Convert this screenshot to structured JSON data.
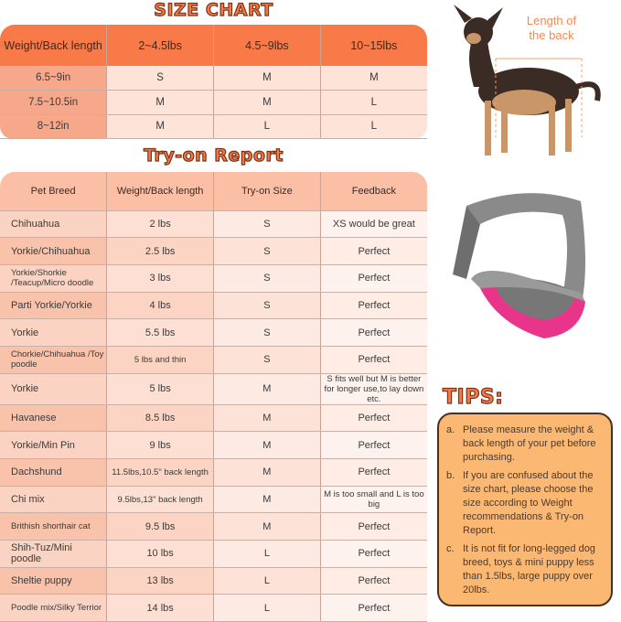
{
  "size_chart": {
    "title": "SIZE CHART",
    "headers": [
      "Weight/Back length",
      "2~4.5lbs",
      "4.5~9lbs",
      "10~15lbs"
    ],
    "rows": [
      [
        "6.5~9in",
        "S",
        "M",
        "M"
      ],
      [
        "7.5~10.5in",
        "M",
        "M",
        "L"
      ],
      [
        "8~12in",
        "M",
        "L",
        "L"
      ]
    ]
  },
  "try_on": {
    "title": "Try-on Report",
    "headers": [
      "Pet Breed",
      "Weight/Back length",
      "Try-on Size",
      "Feedback"
    ],
    "rows": [
      [
        "Chihuahua",
        "2 lbs",
        "S",
        "XS would be great"
      ],
      [
        "Yorkie/Chihuahua",
        "2.5 lbs",
        "S",
        "Perfect"
      ],
      [
        "Yorkie/Shorkie /Teacup/Micro doodle",
        "3 lbs",
        "S",
        "Perfect"
      ],
      [
        "Parti Yorkie/Yorkie",
        "4 lbs",
        "S",
        "Perfect"
      ],
      [
        "Yorkie",
        "5.5 lbs",
        "S",
        "Perfect"
      ],
      [
        "Chorkie/Chihuahua /Toy poodle",
        "5 lbs and thin",
        "S",
        "Perfect"
      ],
      [
        "Yorkie",
        "5 lbs",
        "M",
        "S fits well but M is better for longer use,to lay down etc."
      ],
      [
        "Havanese",
        "8.5 lbs",
        "M",
        "Perfect"
      ],
      [
        "Yorkie/Min Pin",
        "9 lbs",
        "M",
        "Perfect"
      ],
      [
        "Dachshund",
        "11.5lbs,10.5\" back length",
        "M",
        "Perfect"
      ],
      [
        "Chi mix",
        "9.5lbs,13\" back length",
        "M",
        "M is too small and L is too big"
      ],
      [
        "Brithish shorthair cat",
        "9.5 lbs",
        "M",
        "Perfect"
      ],
      [
        "Shih-Tuz/Mini poodle",
        "10 lbs",
        "L",
        "Perfect"
      ],
      [
        "Sheltie puppy",
        "13 lbs",
        "L",
        "Perfect"
      ],
      [
        "Poodle mix/Silky Terrior",
        "14 lbs",
        "L",
        "Perfect"
      ]
    ]
  },
  "dog_photo": {
    "label": "Length of the back"
  },
  "tips": {
    "title": "TIPS:",
    "items": [
      {
        "letter": "a.",
        "text": "Please measure the weight & back length of your pet before purchasing."
      },
      {
        "letter": "b.",
        "text": "If you are confused about the size chart, please choose the size according to Weight recommendations & Try-on Report."
      },
      {
        "letter": "c.",
        "text": "It is not fit for long-legged dog breed, toys & mini puppy less than 1.5lbs, large puppy over 20lbs."
      }
    ]
  },
  "colors": {
    "header_orange": "#f87a48",
    "title_orange": "#f47a48",
    "tips_bg": "#fbb873",
    "sling_pink": "#e8358a",
    "sling_gray": "#8a8a8a"
  }
}
